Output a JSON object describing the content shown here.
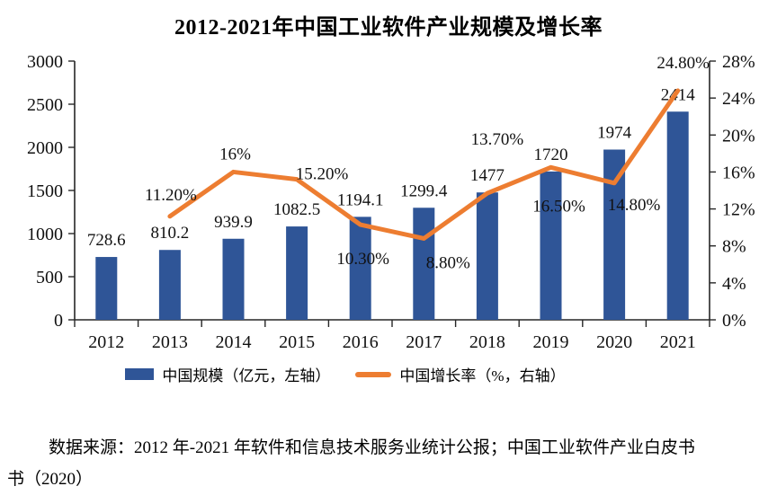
{
  "page": {
    "background": "#ffffff"
  },
  "chart_data": {
    "type": "combo-bar-line",
    "title": "2012-2021年中国工业软件产业规模及增长率",
    "categories": [
      "2012",
      "2013",
      "2014",
      "2015",
      "2016",
      "2017",
      "2018",
      "2019",
      "2020",
      "2021"
    ],
    "series": [
      {
        "name": "中国规模（亿元，左轴）",
        "type": "bar",
        "axis": "left",
        "color": "#2F5597",
        "values": [
          728.6,
          810.2,
          939.9,
          1082.5,
          1194.1,
          1299.4,
          1477,
          1720,
          1974,
          2414
        ],
        "labels": [
          "728.6",
          "810.2",
          "939.9",
          "1082.5",
          "1194.1",
          "1299.4",
          "1477",
          "1720",
          "1974",
          "2414"
        ]
      },
      {
        "name": "中国增长率（%，右轴）",
        "type": "line",
        "axis": "right",
        "color": "#ED7D31",
        "values": [
          null,
          11.2,
          16,
          15.2,
          10.3,
          8.8,
          13.7,
          16.5,
          14.8,
          24.8
        ],
        "labels": [
          null,
          "11.20%",
          "16%",
          "15.20%",
          "10.30%",
          "8.80%",
          "13.70%",
          "16.50%",
          "14.80%",
          "24.80%"
        ],
        "label_offsets": [
          null,
          [
            1,
            -25
          ],
          [
            2,
            -21
          ],
          [
            28,
            -7
          ],
          [
            3,
            37
          ],
          [
            27,
            26
          ],
          [
            11,
            -61
          ],
          [
            9,
            42
          ],
          [
            22,
            23
          ],
          [
            6,
            -32
          ]
        ]
      }
    ],
    "left_axis": {
      "min": 0,
      "max": 3000,
      "step": 500,
      "ticks": [
        "0",
        "500",
        "1000",
        "1500",
        "2000",
        "2500",
        "3000"
      ]
    },
    "right_axis": {
      "min": 0,
      "max": 28,
      "step": 4,
      "ticks": [
        "0%",
        "4%",
        "8%",
        "12%",
        "16%",
        "20%",
        "24%",
        "28%"
      ]
    },
    "axis_color": "#262626",
    "grid": false,
    "legend_position": "bottom"
  },
  "source": {
    "line1": "数据来源：2012 年-2021 年软件和信息技术服务业统计公报；中国工业软件产业白皮书",
    "line2": "书（2020）"
  }
}
